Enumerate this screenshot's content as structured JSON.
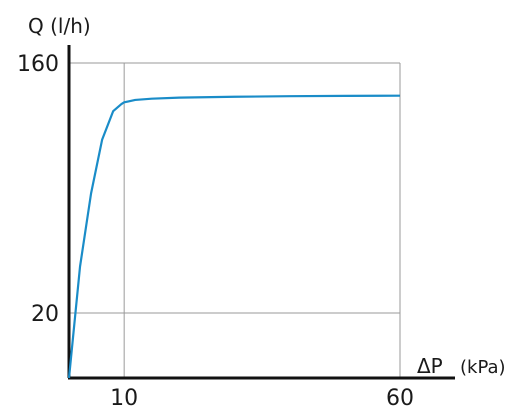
{
  "chart_data": {
    "type": "line",
    "title": "",
    "ylabel": "Q (l/h)",
    "xlabel_symbol": "ΔP",
    "xlabel_unit": "(kPa)",
    "xlim": [
      0,
      60
    ],
    "ylim": [
      0,
      160
    ],
    "xticks": [
      10,
      60
    ],
    "yticks": [
      20,
      160
    ],
    "grid": true,
    "legend": "none",
    "series": [
      {
        "color": "#1a8cc8",
        "points": [
          [
            0,
            0
          ],
          [
            2,
            46
          ],
          [
            4,
            87
          ],
          [
            6,
            117
          ],
          [
            8,
            133
          ],
          [
            9.5,
            137
          ],
          [
            10,
            138
          ],
          [
            12,
            139.3
          ],
          [
            15,
            140
          ],
          [
            20,
            140.6
          ],
          [
            30,
            141.1
          ],
          [
            40,
            141.4
          ],
          [
            50,
            141.6
          ],
          [
            60,
            141.7
          ]
        ]
      }
    ]
  }
}
